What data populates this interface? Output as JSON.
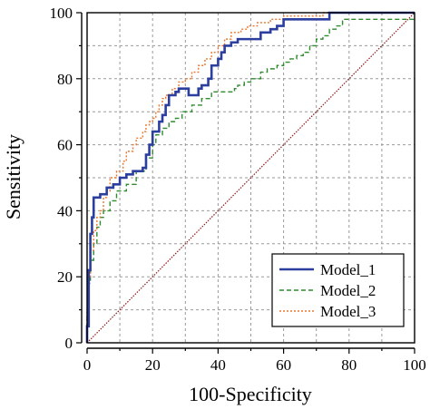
{
  "chart_data": {
    "type": "line",
    "title": "",
    "xlabel": "100-Specificity",
    "ylabel": "Sensitivity",
    "xlim": [
      0,
      100
    ],
    "ylim": [
      0,
      100
    ],
    "xticks": [
      0,
      20,
      40,
      60,
      80,
      100
    ],
    "yticks": [
      0,
      20,
      40,
      60,
      80,
      100
    ],
    "grid": true,
    "legend_position": "bottom-right",
    "reference_line": {
      "x": [
        0,
        100
      ],
      "y": [
        0,
        100
      ],
      "color": "#8b1a1a"
    },
    "series": [
      {
        "name": "Model_1",
        "color": "#2c3e9e",
        "style": "solid",
        "x": [
          0,
          0,
          0.5,
          0.5,
          1,
          1,
          1.5,
          1.5,
          2,
          2,
          4,
          4,
          6,
          6,
          8,
          8,
          10,
          10,
          12,
          12,
          14,
          14,
          17,
          17,
          18,
          18,
          19,
          19,
          20,
          20,
          22,
          22,
          23,
          23,
          24,
          24,
          25,
          25,
          27,
          27,
          28,
          28,
          31,
          31,
          34,
          34,
          35,
          35,
          37,
          37,
          38,
          38,
          40,
          40,
          41,
          41,
          42,
          42,
          44,
          44,
          46,
          46,
          53,
          53,
          56,
          56,
          58,
          58,
          60,
          60,
          62,
          62,
          74,
          74,
          80,
          80,
          100
        ],
        "y": [
          0,
          5,
          5,
          22,
          22,
          33,
          33,
          38,
          38,
          44,
          44,
          45,
          45,
          47,
          47,
          48,
          48,
          50,
          50,
          51,
          51,
          52,
          52,
          53,
          53,
          57,
          57,
          60,
          60,
          64,
          64,
          67,
          67,
          69,
          69,
          72,
          72,
          75,
          75,
          76,
          76,
          77,
          77,
          75,
          75,
          77,
          77,
          78,
          78,
          80,
          80,
          84,
          84,
          86,
          86,
          88,
          88,
          90,
          90,
          91,
          91,
          92,
          92,
          94,
          94,
          95,
          95,
          96,
          96,
          98,
          98,
          98,
          98,
          100,
          100,
          100,
          100
        ]
      },
      {
        "name": "Model_2",
        "color": "#2e8b2e",
        "style": "dashed",
        "x": [
          0,
          0,
          0.5,
          0.5,
          1,
          1,
          2,
          2,
          3,
          3,
          4,
          4,
          5,
          5,
          7,
          7,
          9,
          9,
          12,
          12,
          15,
          15,
          18,
          18,
          20,
          20,
          21,
          21,
          23,
          23,
          25,
          25,
          27,
          27,
          29,
          29,
          32,
          32,
          35,
          35,
          38,
          38,
          45,
          45,
          46,
          46,
          48,
          48,
          50,
          50,
          53,
          53,
          55,
          55,
          58,
          58,
          60,
          60,
          62,
          62,
          64,
          64,
          66,
          66,
          68,
          68,
          70,
          70,
          72,
          72,
          74,
          74,
          76,
          76,
          78,
          78,
          100
        ],
        "y": [
          0,
          8,
          8,
          18,
          18,
          25,
          25,
          30,
          30,
          35,
          35,
          38,
          38,
          40,
          40,
          43,
          43,
          46,
          46,
          48,
          48,
          52,
          52,
          56,
          56,
          60,
          60,
          63,
          63,
          65,
          65,
          67,
          67,
          68,
          68,
          70,
          70,
          72,
          72,
          74,
          74,
          76,
          76,
          77,
          77,
          78,
          78,
          79,
          79,
          80,
          80,
          82,
          82,
          83,
          83,
          84,
          84,
          85,
          85,
          86,
          86,
          87,
          87,
          88,
          88,
          90,
          90,
          92,
          92,
          93,
          93,
          95,
          95,
          96,
          96,
          98,
          98
        ]
      },
      {
        "name": "Model_3",
        "color": "#e8772e",
        "style": "dotted",
        "x": [
          0,
          0,
          0.5,
          0.5,
          1,
          1,
          2,
          2,
          3,
          3,
          4,
          4,
          5,
          5,
          6,
          6,
          7,
          7,
          9,
          9,
          11,
          11,
          12,
          12,
          14,
          14,
          15,
          15,
          17,
          17,
          18,
          18,
          19,
          19,
          20,
          20,
          21,
          21,
          22,
          22,
          23,
          23,
          24,
          24,
          26,
          26,
          28,
          28,
          30,
          30,
          32,
          32,
          34,
          34,
          36,
          36,
          38,
          38,
          40,
          40,
          42,
          42,
          44,
          44,
          47,
          47,
          49,
          49,
          52,
          52,
          56,
          56,
          60,
          60,
          72,
          72,
          87,
          87,
          100
        ],
        "y": [
          0,
          10,
          10,
          20,
          20,
          28,
          28,
          34,
          34,
          38,
          38,
          40,
          40,
          44,
          44,
          46,
          46,
          50,
          50,
          52,
          52,
          55,
          55,
          58,
          58,
          60,
          60,
          62,
          62,
          64,
          64,
          66,
          66,
          67,
          67,
          68,
          68,
          70,
          70,
          72,
          72,
          74,
          74,
          75,
          75,
          77,
          77,
          79,
          79,
          80,
          80,
          82,
          82,
          84,
          84,
          86,
          86,
          88,
          88,
          90,
          90,
          92,
          92,
          94,
          94,
          95,
          95,
          96,
          96,
          97,
          97,
          98,
          98,
          99,
          99,
          100,
          100,
          100,
          100
        ]
      }
    ]
  }
}
